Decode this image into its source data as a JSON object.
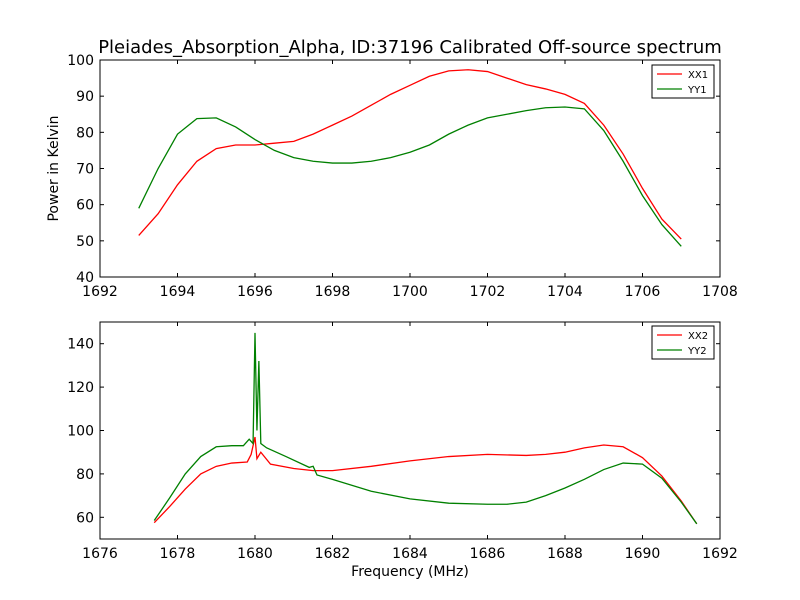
{
  "chart_data": [
    {
      "type": "line",
      "title": "Pleiades_Absorption_Alpha, ID:37196 Calibrated Off-source spectrum",
      "xlabel": "",
      "ylabel": "Power in Kelvin",
      "xlim": [
        1692,
        1708
      ],
      "ylim": [
        40,
        100
      ],
      "xticks": [
        "1692",
        "1694",
        "1696",
        "1698",
        "1700",
        "1702",
        "1704",
        "1706",
        "1708"
      ],
      "yticks": [
        "40",
        "50",
        "60",
        "70",
        "80",
        "90",
        "100"
      ],
      "grid": false,
      "legend": "top-right",
      "series": [
        {
          "name": "XX1",
          "color": "#ff0000",
          "x": [
            1693.0,
            1693.5,
            1694.0,
            1694.5,
            1695.0,
            1695.5,
            1696.0,
            1696.5,
            1697.0,
            1697.5,
            1698.0,
            1698.5,
            1699.0,
            1699.5,
            1700.0,
            1700.5,
            1701.0,
            1701.5,
            1702.0,
            1702.5,
            1703.0,
            1703.5,
            1704.0,
            1704.5,
            1705.0,
            1705.5,
            1706.0,
            1706.5,
            1707.0
          ],
          "y": [
            51.5,
            57.5,
            65.5,
            72.0,
            75.5,
            76.5,
            76.5,
            77.0,
            77.5,
            79.5,
            82.0,
            84.5,
            87.5,
            90.5,
            93.0,
            95.5,
            97.0,
            97.3,
            96.8,
            95.0,
            93.2,
            92.0,
            90.5,
            88.0,
            82.0,
            74.0,
            64.5,
            56.0,
            50.5
          ]
        },
        {
          "name": "YY1",
          "color": "#008000",
          "x": [
            1693.0,
            1693.5,
            1694.0,
            1694.5,
            1695.0,
            1695.5,
            1696.0,
            1696.5,
            1697.0,
            1697.5,
            1698.0,
            1698.5,
            1699.0,
            1699.5,
            1700.0,
            1700.5,
            1701.0,
            1701.5,
            1702.0,
            1702.5,
            1703.0,
            1703.5,
            1704.0,
            1704.5,
            1705.0,
            1705.5,
            1706.0,
            1706.5,
            1707.0
          ],
          "y": [
            59.0,
            70.0,
            79.5,
            83.8,
            84.0,
            81.5,
            78.0,
            75.0,
            73.0,
            72.0,
            71.5,
            71.5,
            72.0,
            73.0,
            74.5,
            76.5,
            79.5,
            82.0,
            84.0,
            85.0,
            86.0,
            86.8,
            87.0,
            86.5,
            80.5,
            72.0,
            62.5,
            54.5,
            48.5
          ]
        }
      ]
    },
    {
      "type": "line",
      "title": "",
      "xlabel": "Frequency (MHz)",
      "ylabel": "",
      "xlim": [
        1676,
        1692
      ],
      "ylim": [
        50,
        150
      ],
      "xticks": [
        "1676",
        "1678",
        "1680",
        "1682",
        "1684",
        "1686",
        "1688",
        "1690",
        "1692"
      ],
      "yticks": [
        "60",
        "80",
        "100",
        "120",
        "140"
      ],
      "grid": false,
      "legend": "top-right",
      "series": [
        {
          "name": "XX2",
          "color": "#ff0000",
          "x": [
            1677.4,
            1677.8,
            1678.2,
            1678.6,
            1679.0,
            1679.4,
            1679.8,
            1679.9,
            1680.0,
            1680.05,
            1680.15,
            1680.4,
            1681.0,
            1681.5,
            1682.0,
            1683.0,
            1684.0,
            1685.0,
            1686.0,
            1687.0,
            1687.5,
            1688.0,
            1688.5,
            1689.0,
            1689.5,
            1690.0,
            1690.5,
            1691.0,
            1691.4
          ],
          "y": [
            57.5,
            65.0,
            73.0,
            80.0,
            83.5,
            85.0,
            85.5,
            89.0,
            97.0,
            87.0,
            90.0,
            84.5,
            82.5,
            81.5,
            81.5,
            83.5,
            86.0,
            88.0,
            89.0,
            88.5,
            89.0,
            90.0,
            92.0,
            93.3,
            92.5,
            87.5,
            79.0,
            67.5,
            57.0
          ]
        },
        {
          "name": "YY2",
          "color": "#008000",
          "x": [
            1677.4,
            1677.8,
            1678.2,
            1678.6,
            1679.0,
            1679.4,
            1679.7,
            1679.85,
            1679.95,
            1680.0,
            1680.05,
            1680.1,
            1680.15,
            1680.3,
            1680.8,
            1681.4,
            1681.5,
            1681.6,
            1682.0,
            1683.0,
            1684.0,
            1685.0,
            1686.0,
            1686.5,
            1687.0,
            1687.5,
            1688.0,
            1688.5,
            1689.0,
            1689.5,
            1690.0,
            1690.5,
            1691.0,
            1691.4
          ],
          "y": [
            58.5,
            69.0,
            80.0,
            88.0,
            92.5,
            93.0,
            93.0,
            96.0,
            94.0,
            145.0,
            100.0,
            132.0,
            94.0,
            92.0,
            88.0,
            83.0,
            83.5,
            79.5,
            77.5,
            72.0,
            68.5,
            66.5,
            66.0,
            66.0,
            67.0,
            70.0,
            73.5,
            77.5,
            82.0,
            85.0,
            84.5,
            78.0,
            67.0,
            57.0
          ]
        }
      ]
    }
  ]
}
